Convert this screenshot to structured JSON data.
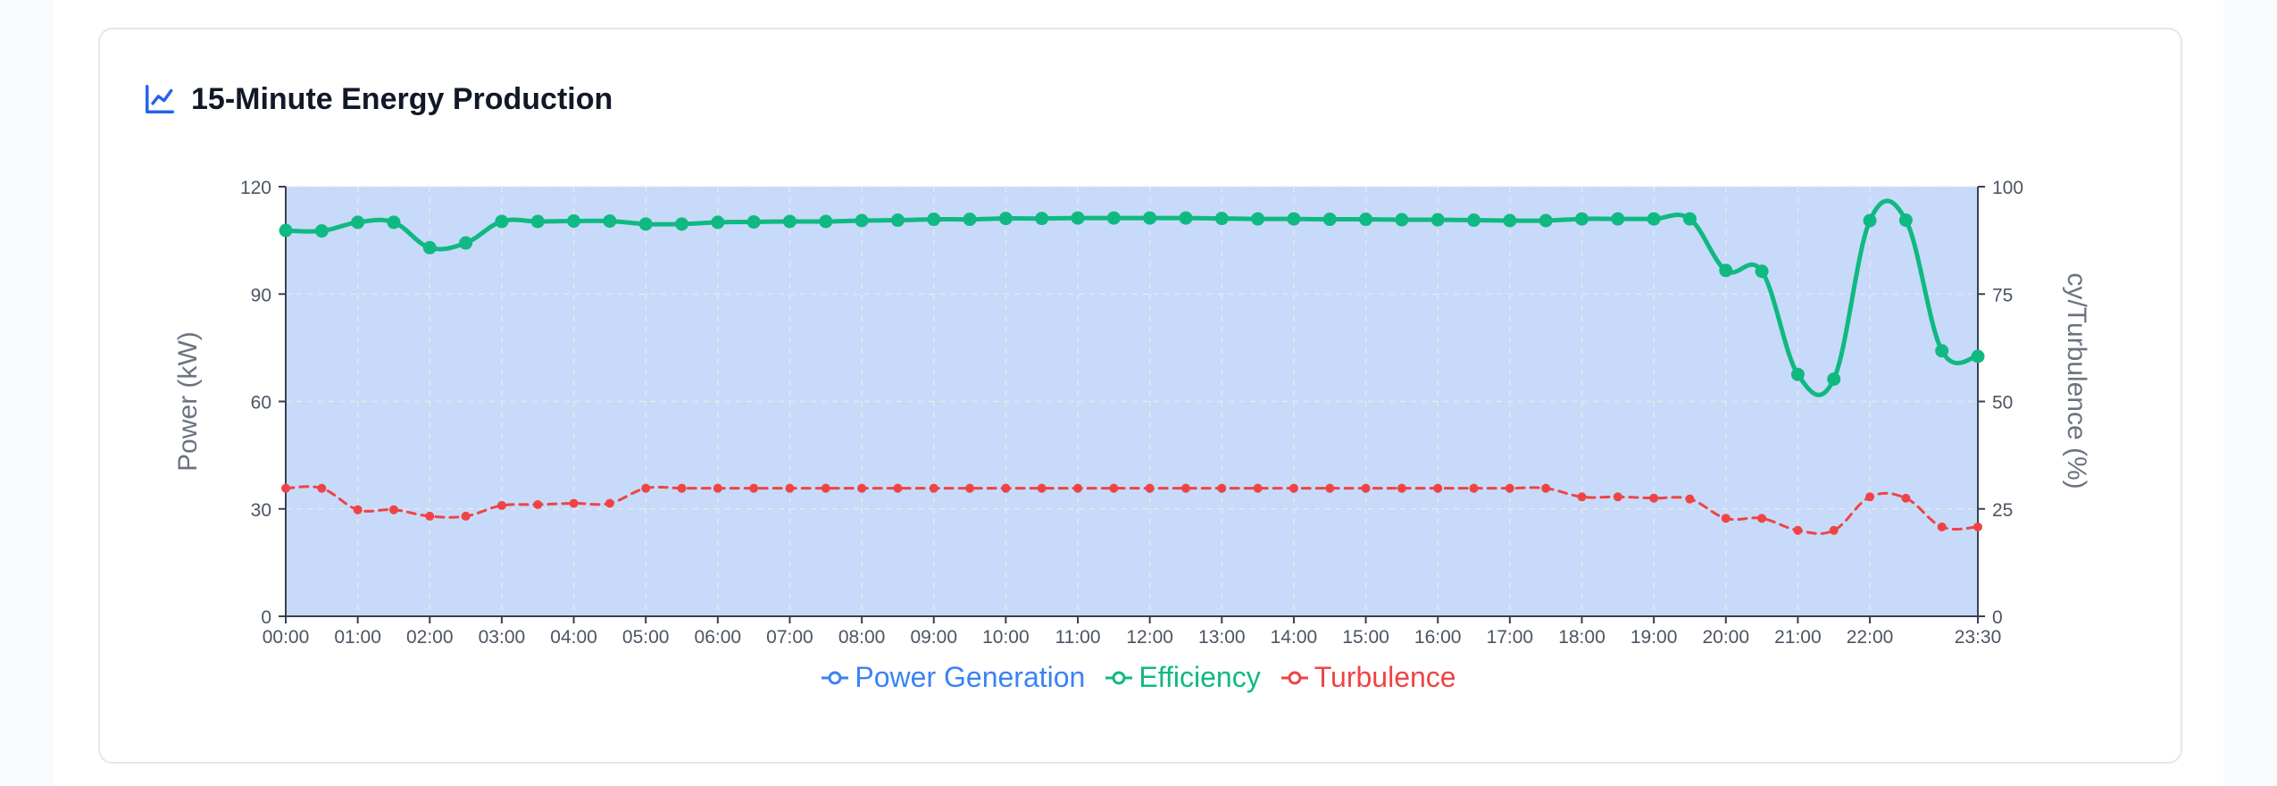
{
  "header": {
    "title": "15-Minute Energy Production",
    "icon": "line-chart-icon",
    "icon_color": "#2563eb"
  },
  "chart_data": {
    "type": "line",
    "title": "15-Minute Energy Production",
    "x_ticks": [
      "00:00",
      "01:00",
      "02:00",
      "03:00",
      "04:00",
      "05:00",
      "06:00",
      "07:00",
      "08:00",
      "09:00",
      "10:00",
      "11:00",
      "12:00",
      "13:00",
      "14:00",
      "15:00",
      "16:00",
      "17:00",
      "18:00",
      "19:00",
      "20:00",
      "21:00",
      "22:00",
      "23:30"
    ],
    "x": [
      "00:00",
      "00:30",
      "01:00",
      "01:30",
      "02:00",
      "02:30",
      "03:00",
      "03:30",
      "04:00",
      "04:30",
      "05:00",
      "05:30",
      "06:00",
      "06:30",
      "07:00",
      "07:30",
      "08:00",
      "08:30",
      "09:00",
      "09:30",
      "10:00",
      "10:30",
      "11:00",
      "11:30",
      "12:00",
      "12:30",
      "13:00",
      "13:30",
      "14:00",
      "14:30",
      "15:00",
      "15:30",
      "16:00",
      "16:30",
      "17:00",
      "17:30",
      "18:00",
      "18:30",
      "19:00",
      "19:30",
      "20:00",
      "20:30",
      "21:00",
      "21:30",
      "22:00",
      "22:30",
      "23:00",
      "23:30"
    ],
    "ylabel_left": "Power (kW)",
    "ylabel_right": "cy/Turbulence (%)",
    "ylim_left": [
      0,
      120
    ],
    "yticks_left": [
      0,
      30,
      60,
      90,
      120
    ],
    "ylim_right": [
      0,
      100
    ],
    "yticks_right": [
      0,
      25,
      50,
      75,
      100
    ],
    "grid": true,
    "legend_position": "bottom-center",
    "series": [
      {
        "name": "Power Generation",
        "axis": "left",
        "color": "#3b82f6",
        "fill": "#c7dafa",
        "values": [
          120,
          120,
          120,
          120,
          120,
          120,
          120,
          120,
          120,
          120,
          120,
          120,
          120,
          120,
          120,
          120,
          120,
          120,
          120,
          120,
          120,
          120,
          120,
          120,
          120,
          120,
          120,
          120,
          120,
          120,
          120,
          120,
          120,
          120,
          120,
          120,
          120,
          120,
          120,
          120,
          120,
          120,
          120,
          120,
          120,
          120,
          120,
          120
        ]
      },
      {
        "name": "Efficiency",
        "axis": "right",
        "color": "#10b981",
        "values": [
          89.8,
          89.7,
          91.7,
          91.7,
          85.8,
          86.9,
          91.9,
          91.9,
          92.0,
          92.0,
          91.3,
          91.3,
          91.7,
          91.8,
          91.9,
          91.9,
          92.1,
          92.2,
          92.4,
          92.4,
          92.6,
          92.6,
          92.7,
          92.7,
          92.7,
          92.7,
          92.6,
          92.5,
          92.5,
          92.4,
          92.4,
          92.3,
          92.3,
          92.2,
          92.1,
          92.1,
          92.5,
          92.5,
          92.5,
          92.5,
          80.5,
          80.3,
          56.3,
          55.2,
          92.1,
          92.2,
          61.8,
          60.5
        ]
      },
      {
        "name": "Turbulence",
        "axis": "right",
        "color": "#ef4444",
        "dashed": true,
        "values": [
          29.8,
          29.8,
          24.8,
          24.8,
          23.3,
          23.3,
          25.8,
          26.0,
          26.3,
          26.3,
          29.8,
          29.8,
          29.8,
          29.8,
          29.8,
          29.8,
          29.8,
          29.8,
          29.8,
          29.8,
          29.8,
          29.8,
          29.8,
          29.8,
          29.8,
          29.8,
          29.8,
          29.8,
          29.8,
          29.8,
          29.8,
          29.8,
          29.8,
          29.8,
          29.8,
          29.8,
          27.8,
          27.8,
          27.5,
          27.3,
          22.8,
          22.8,
          20.0,
          20.0,
          27.8,
          27.5,
          20.8,
          20.8
        ]
      }
    ]
  }
}
